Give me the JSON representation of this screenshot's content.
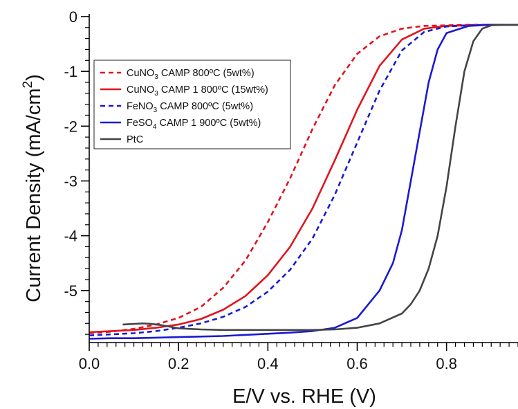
{
  "chart_data": {
    "type": "line",
    "xlabel": "E/V vs. RHE (V)",
    "ylabel_main": "Current Density (mA/cm",
    "ylabel_sup": "2",
    "ylabel_close": ")",
    "xlim": [
      0.0,
      0.96
    ],
    "ylim": [
      -5.95,
      0.05
    ],
    "xticks": [
      {
        "v": 0.0,
        "label": "0.0"
      },
      {
        "v": 0.2,
        "label": "0.2"
      },
      {
        "v": 0.4,
        "label": "0.4"
      },
      {
        "v": 0.6,
        "label": "0.6"
      },
      {
        "v": 0.8,
        "label": "0.8"
      }
    ],
    "yticks": [
      {
        "v": 0,
        "label": "0"
      },
      {
        "v": -1,
        "label": "-1"
      },
      {
        "v": -2,
        "label": "-2"
      },
      {
        "v": -3,
        "label": "-3"
      },
      {
        "v": -4,
        "label": "-4"
      },
      {
        "v": -5,
        "label": "-5"
      }
    ],
    "legend_position": "top-left",
    "series": [
      {
        "name": "CuNO3 CAMP 800ºC (5wt%)",
        "label_parts": [
          "CuNO",
          "3",
          " CAMP 800ºC (5wt%)"
        ],
        "color": "#e0141e",
        "dash": "dashed",
        "x": [
          0.0,
          0.05,
          0.1,
          0.15,
          0.2,
          0.25,
          0.3,
          0.35,
          0.4,
          0.45,
          0.5,
          0.55,
          0.6,
          0.65,
          0.7,
          0.75,
          0.8,
          0.85,
          0.9,
          0.96
        ],
        "y": [
          -5.78,
          -5.75,
          -5.7,
          -5.62,
          -5.5,
          -5.3,
          -4.95,
          -4.45,
          -3.75,
          -2.95,
          -2.05,
          -1.25,
          -0.68,
          -0.36,
          -0.22,
          -0.17,
          -0.16,
          -0.15,
          -0.15,
          -0.15
        ]
      },
      {
        "name": "CuNO3 CAMP 1 800ºC (15wt%)",
        "label_parts": [
          "CuNO",
          "3",
          " CAMP 1 800ºC (15wt%)"
        ],
        "color": "#e0141e",
        "dash": "solid",
        "x": [
          0.0,
          0.05,
          0.1,
          0.15,
          0.2,
          0.25,
          0.3,
          0.35,
          0.4,
          0.45,
          0.5,
          0.55,
          0.6,
          0.65,
          0.7,
          0.75,
          0.8,
          0.85,
          0.9,
          0.96
        ],
        "y": [
          -5.76,
          -5.74,
          -5.72,
          -5.68,
          -5.62,
          -5.52,
          -5.35,
          -5.1,
          -4.72,
          -4.2,
          -3.5,
          -2.62,
          -1.7,
          -0.9,
          -0.42,
          -0.22,
          -0.17,
          -0.16,
          -0.15,
          -0.15
        ]
      },
      {
        "name": "FeNO3 CAMP 800ºC (5wt%)",
        "label_parts": [
          "FeNO",
          "3",
          " CAMP 800ºC (5wt%)"
        ],
        "color": "#1a1ad0",
        "dash": "dashed",
        "x": [
          0.0,
          0.05,
          0.1,
          0.15,
          0.2,
          0.25,
          0.3,
          0.35,
          0.4,
          0.45,
          0.5,
          0.55,
          0.6,
          0.65,
          0.7,
          0.75,
          0.8,
          0.85,
          0.9,
          0.96
        ],
        "y": [
          -5.82,
          -5.8,
          -5.78,
          -5.74,
          -5.68,
          -5.6,
          -5.48,
          -5.3,
          -5.02,
          -4.62,
          -4.05,
          -3.25,
          -2.3,
          -1.35,
          -0.62,
          -0.28,
          -0.18,
          -0.16,
          -0.15,
          -0.15
        ]
      },
      {
        "name": "FeSO4 CAMP 1 900ºC (5wt%)",
        "label_parts": [
          "FeSO",
          "4",
          " CAMP 1 900ºC (5wt%)"
        ],
        "color": "#1a1ad0",
        "dash": "solid",
        "x": [
          0.0,
          0.05,
          0.1,
          0.15,
          0.2,
          0.25,
          0.3,
          0.35,
          0.4,
          0.45,
          0.5,
          0.55,
          0.6,
          0.65,
          0.68,
          0.7,
          0.72,
          0.74,
          0.76,
          0.78,
          0.8,
          0.85,
          0.9,
          0.96
        ],
        "y": [
          -5.88,
          -5.87,
          -5.87,
          -5.86,
          -5.85,
          -5.84,
          -5.83,
          -5.81,
          -5.79,
          -5.77,
          -5.74,
          -5.68,
          -5.5,
          -5.0,
          -4.5,
          -3.9,
          -3.0,
          -2.1,
          -1.2,
          -0.6,
          -0.3,
          -0.17,
          -0.15,
          -0.15
        ]
      },
      {
        "name": "PtC",
        "label_parts": [
          "PtC",
          "",
          ""
        ],
        "color": "#444444",
        "dash": "solid",
        "x": [
          0.075,
          0.1,
          0.12,
          0.14,
          0.16,
          0.18,
          0.2,
          0.25,
          0.3,
          0.35,
          0.4,
          0.45,
          0.5,
          0.55,
          0.6,
          0.65,
          0.7,
          0.72,
          0.74,
          0.76,
          0.78,
          0.8,
          0.82,
          0.84,
          0.86,
          0.88,
          0.9,
          0.93,
          0.96
        ],
        "y": [
          -5.62,
          -5.61,
          -5.6,
          -5.61,
          -5.63,
          -5.66,
          -5.69,
          -5.71,
          -5.72,
          -5.72,
          -5.72,
          -5.72,
          -5.72,
          -5.71,
          -5.68,
          -5.6,
          -5.42,
          -5.25,
          -5.0,
          -4.6,
          -4.0,
          -3.1,
          -2.0,
          -1.0,
          -0.45,
          -0.22,
          -0.16,
          -0.15,
          -0.15
        ]
      }
    ]
  }
}
